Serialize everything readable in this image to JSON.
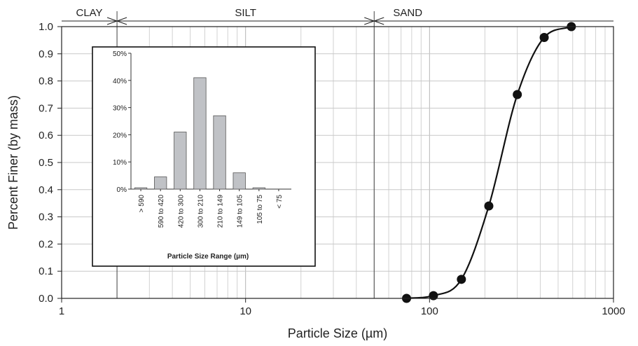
{
  "chart_data": [
    {
      "type": "line",
      "xscale": "log",
      "xlabel": "Particle Size (µm)",
      "ylabel": "Percent Finer (by mass)",
      "xlim": [
        1,
        1000
      ],
      "ylim": [
        0,
        1.0
      ],
      "grid": true,
      "x_ticks": [
        "1",
        "10",
        "100",
        "1000"
      ],
      "y_ticks": [
        "0.0",
        "0.1",
        "0.2",
        "0.3",
        "0.4",
        "0.5",
        "0.6",
        "0.7",
        "0.8",
        "0.9",
        "1.0"
      ],
      "series": [
        {
          "x": [
            75,
            105,
            149,
            210,
            300,
            420,
            590
          ],
          "y": [
            0.0,
            0.01,
            0.07,
            0.34,
            0.75,
            0.96,
            1.0
          ]
        }
      ],
      "size_classes": [
        {
          "label": "CLAY",
          "upper": 2
        },
        {
          "label": "SILT",
          "lower": 2,
          "upper": 50
        },
        {
          "label": "SAND",
          "lower": 50
        }
      ]
    },
    {
      "type": "bar",
      "xlabel": "Particle Size Range (µm)",
      "ylim": [
        0,
        50
      ],
      "y_ticks": [
        "0%",
        "10%",
        "20%",
        "30%",
        "40%",
        "50%"
      ],
      "categories": [
        "> 590",
        "590 to 420",
        "420 to 300",
        "300 to 210",
        "210 to 149",
        "149 to 105",
        "105 to 75",
        "< 75"
      ],
      "values": [
        0.5,
        4.5,
        21,
        41,
        27,
        6,
        0.5,
        0
      ]
    }
  ]
}
